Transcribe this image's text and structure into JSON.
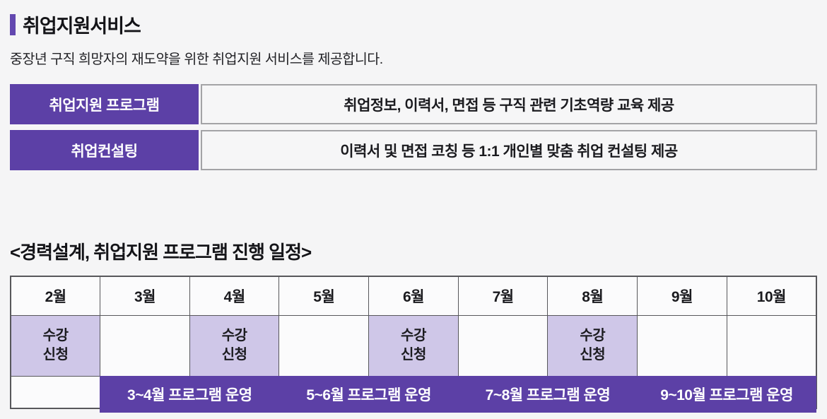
{
  "page": {
    "title": "취업지원서비스",
    "subtitle": "중장년 구직 희망자의 재도약을 위한 취업지원 서비스를 제공합니다."
  },
  "services": [
    {
      "label": "취업지원 프로그램",
      "description": "취업정보, 이력서, 면접 등 구직 관련 기초역량 교육 제공"
    },
    {
      "label": "취업컨설팅",
      "description": "이력서 및 면접 코칭 등 1:1 개인별 맞춤 취업 컨설팅 제공"
    }
  ],
  "schedule": {
    "title": "<경력설계, 취업지원 프로그램 진행 일정>",
    "months": [
      "2월",
      "3월",
      "4월",
      "5월",
      "6월",
      "7월",
      "8월",
      "9월",
      "10월"
    ],
    "signup_label": "수강\n신청",
    "signup_months": [
      "2월",
      "4월",
      "6월",
      "8월"
    ],
    "programs": [
      {
        "label": "3~4월 프로그램 운영",
        "span": [
          "3월",
          "4월"
        ]
      },
      {
        "label": "5~6월 프로그램 운영",
        "span": [
          "5월",
          "6월"
        ]
      },
      {
        "label": "7~8월 프로그램 운영",
        "span": [
          "7월",
          "8월"
        ]
      },
      {
        "label": "9~10월 프로그램 운영",
        "span": [
          "9월",
          "10월"
        ]
      }
    ]
  },
  "colors": {
    "accent_purple": "#5c40a6",
    "light_purple": "#cfc7e8",
    "table_border": "#57575b",
    "page_background": "#f5f5f6"
  }
}
